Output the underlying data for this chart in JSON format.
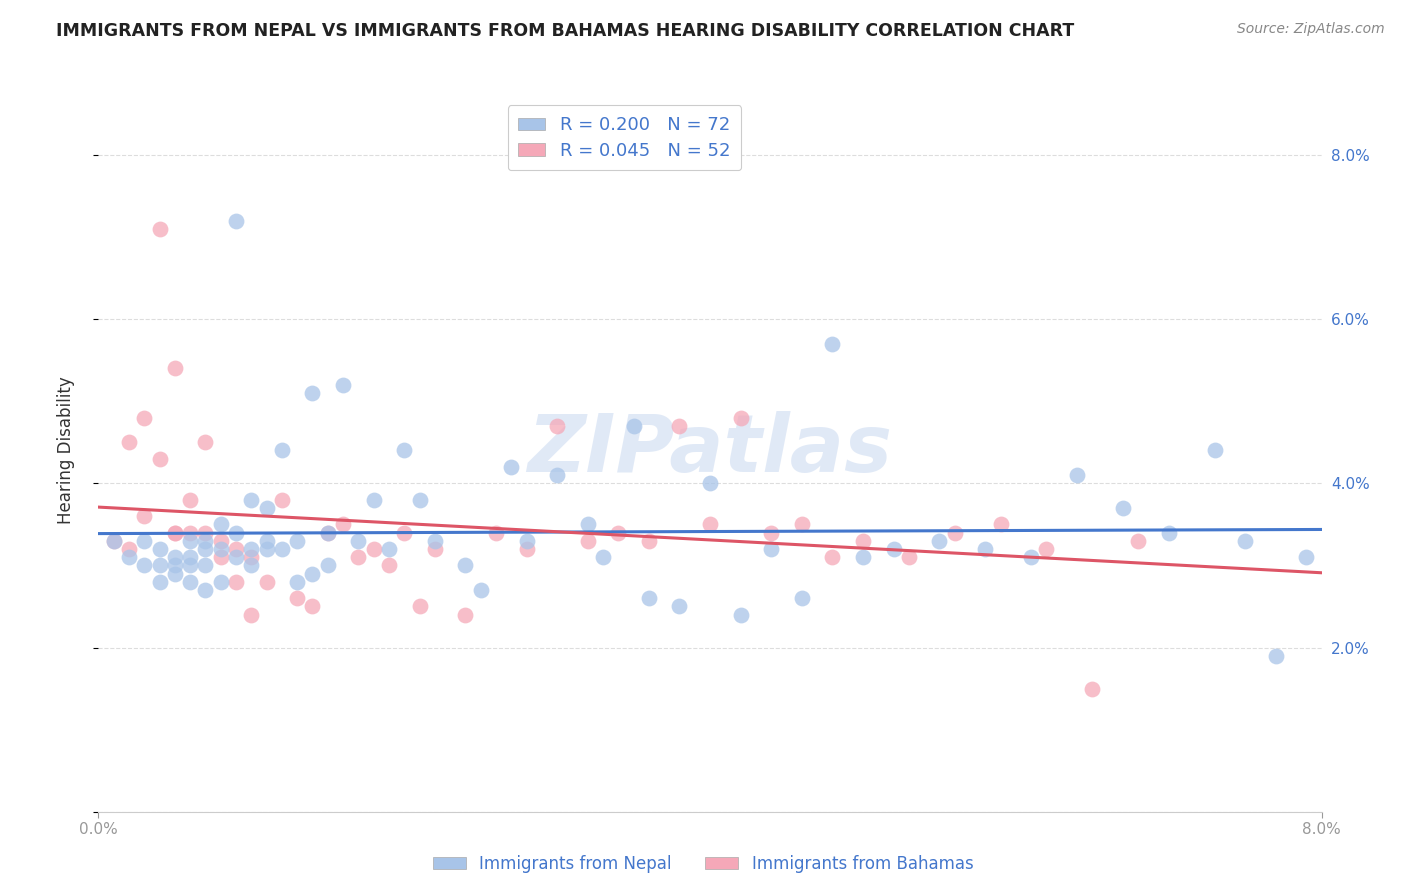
{
  "title": "IMMIGRANTS FROM NEPAL VS IMMIGRANTS FROM BAHAMAS HEARING DISABILITY CORRELATION CHART",
  "source": "Source: ZipAtlas.com",
  "ylabel": "Hearing Disability",
  "xlim": [
    0.0,
    0.08
  ],
  "ylim": [
    0.0,
    0.088
  ],
  "yticks": [
    0.0,
    0.02,
    0.04,
    0.06,
    0.08
  ],
  "ytick_labels": [
    "",
    "2.0%",
    "4.0%",
    "6.0%",
    "8.0%"
  ],
  "nepal_color": "#a8c4e8",
  "bahamas_color": "#f5a8b8",
  "nepal_line_color": "#4477cc",
  "bahamas_line_color": "#dd5566",
  "legend_nepal_R": "0.200",
  "legend_nepal_N": "72",
  "legend_bahamas_R": "0.045",
  "legend_bahamas_N": "52",
  "watermark": "ZIPatlas",
  "background_color": "#ffffff",
  "grid_color": "#dddddd",
  "nepal_x": [
    0.001,
    0.002,
    0.003,
    0.003,
    0.004,
    0.004,
    0.004,
    0.005,
    0.005,
    0.005,
    0.006,
    0.006,
    0.006,
    0.006,
    0.007,
    0.007,
    0.007,
    0.007,
    0.008,
    0.008,
    0.008,
    0.009,
    0.009,
    0.009,
    0.01,
    0.01,
    0.01,
    0.011,
    0.011,
    0.011,
    0.012,
    0.012,
    0.013,
    0.013,
    0.014,
    0.014,
    0.015,
    0.015,
    0.016,
    0.017,
    0.018,
    0.019,
    0.02,
    0.021,
    0.022,
    0.024,
    0.025,
    0.027,
    0.028,
    0.03,
    0.032,
    0.033,
    0.035,
    0.036,
    0.038,
    0.04,
    0.042,
    0.044,
    0.046,
    0.048,
    0.05,
    0.052,
    0.055,
    0.058,
    0.061,
    0.064,
    0.067,
    0.07,
    0.073,
    0.075,
    0.077,
    0.079
  ],
  "nepal_y": [
    0.033,
    0.031,
    0.033,
    0.03,
    0.032,
    0.03,
    0.028,
    0.031,
    0.03,
    0.029,
    0.033,
    0.031,
    0.028,
    0.03,
    0.032,
    0.03,
    0.027,
    0.033,
    0.035,
    0.032,
    0.028,
    0.034,
    0.031,
    0.072,
    0.038,
    0.032,
    0.03,
    0.037,
    0.033,
    0.032,
    0.044,
    0.032,
    0.033,
    0.028,
    0.051,
    0.029,
    0.034,
    0.03,
    0.052,
    0.033,
    0.038,
    0.032,
    0.044,
    0.038,
    0.033,
    0.03,
    0.027,
    0.042,
    0.033,
    0.041,
    0.035,
    0.031,
    0.047,
    0.026,
    0.025,
    0.04,
    0.024,
    0.032,
    0.026,
    0.057,
    0.031,
    0.032,
    0.033,
    0.032,
    0.031,
    0.041,
    0.037,
    0.034,
    0.044,
    0.033,
    0.019,
    0.031
  ],
  "bahamas_x": [
    0.001,
    0.002,
    0.002,
    0.003,
    0.003,
    0.004,
    0.004,
    0.005,
    0.005,
    0.005,
    0.006,
    0.006,
    0.007,
    0.007,
    0.008,
    0.008,
    0.009,
    0.009,
    0.01,
    0.01,
    0.011,
    0.012,
    0.013,
    0.014,
    0.015,
    0.016,
    0.017,
    0.018,
    0.019,
    0.02,
    0.021,
    0.022,
    0.024,
    0.026,
    0.028,
    0.03,
    0.032,
    0.034,
    0.036,
    0.038,
    0.04,
    0.042,
    0.044,
    0.046,
    0.048,
    0.05,
    0.053,
    0.056,
    0.059,
    0.062,
    0.065,
    0.068
  ],
  "bahamas_y": [
    0.033,
    0.045,
    0.032,
    0.048,
    0.036,
    0.071,
    0.043,
    0.034,
    0.034,
    0.054,
    0.034,
    0.038,
    0.034,
    0.045,
    0.033,
    0.031,
    0.028,
    0.032,
    0.024,
    0.031,
    0.028,
    0.038,
    0.026,
    0.025,
    0.034,
    0.035,
    0.031,
    0.032,
    0.03,
    0.034,
    0.025,
    0.032,
    0.024,
    0.034,
    0.032,
    0.047,
    0.033,
    0.034,
    0.033,
    0.047,
    0.035,
    0.048,
    0.034,
    0.035,
    0.031,
    0.033,
    0.031,
    0.034,
    0.035,
    0.032,
    0.015,
    0.033
  ]
}
